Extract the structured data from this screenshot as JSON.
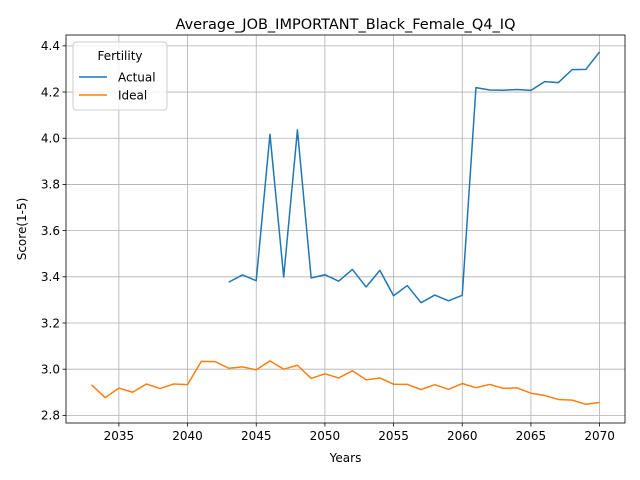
{
  "chart_data": {
    "type": "line",
    "title": "Average_JOB_IMPORTANT_Black_Female_Q4_IQ",
    "xlabel": "Years",
    "ylabel": "Score(1-5)",
    "xlim": [
      2031.15,
      2071.85
    ],
    "ylim": [
      2.767,
      4.447
    ],
    "xticks": [
      2035,
      2040,
      2045,
      2050,
      2055,
      2060,
      2065,
      2070
    ],
    "yticks": [
      2.8,
      3.0,
      3.2,
      3.4,
      3.6,
      3.8,
      4.0,
      4.2,
      4.4
    ],
    "grid": true,
    "legend": {
      "title": "Fertility",
      "placement": "top-left"
    },
    "series": [
      {
        "name": "Actual",
        "color": "#1f77b4",
        "x": [
          2043,
          2044,
          2045,
          2046,
          2047,
          2048,
          2049,
          2050,
          2051,
          2052,
          2053,
          2054,
          2055,
          2056,
          2057,
          2058,
          2059,
          2060,
          2061,
          2062,
          2063,
          2064,
          2065,
          2066,
          2067,
          2068,
          2069,
          2070
        ],
        "values": [
          3.377,
          3.408,
          3.383,
          4.017,
          3.399,
          4.036,
          3.395,
          3.409,
          3.381,
          3.432,
          3.356,
          3.428,
          3.318,
          3.362,
          3.288,
          3.321,
          3.296,
          3.32,
          4.219,
          4.209,
          4.208,
          4.211,
          4.207,
          4.245,
          4.241,
          4.297,
          4.298,
          4.374
        ]
      },
      {
        "name": "Ideal",
        "color": "#ff7f0e",
        "x": [
          2033,
          2034,
          2035,
          2036,
          2037,
          2038,
          2039,
          2040,
          2041,
          2042,
          2043,
          2044,
          2045,
          2046,
          2047,
          2048,
          2049,
          2050,
          2051,
          2052,
          2053,
          2054,
          2055,
          2056,
          2057,
          2058,
          2059,
          2060,
          2061,
          2062,
          2063,
          2064,
          2065,
          2066,
          2067,
          2068,
          2069,
          2070
        ],
        "values": [
          2.933,
          2.877,
          2.918,
          2.9,
          2.936,
          2.916,
          2.936,
          2.933,
          3.034,
          3.033,
          3.004,
          3.01,
          2.997,
          3.036,
          3.0,
          3.017,
          2.96,
          2.98,
          2.962,
          2.993,
          2.954,
          2.962,
          2.935,
          2.934,
          2.912,
          2.933,
          2.913,
          2.938,
          2.92,
          2.934,
          2.917,
          2.919,
          2.896,
          2.886,
          2.869,
          2.866,
          2.848,
          2.856
        ]
      }
    ]
  }
}
